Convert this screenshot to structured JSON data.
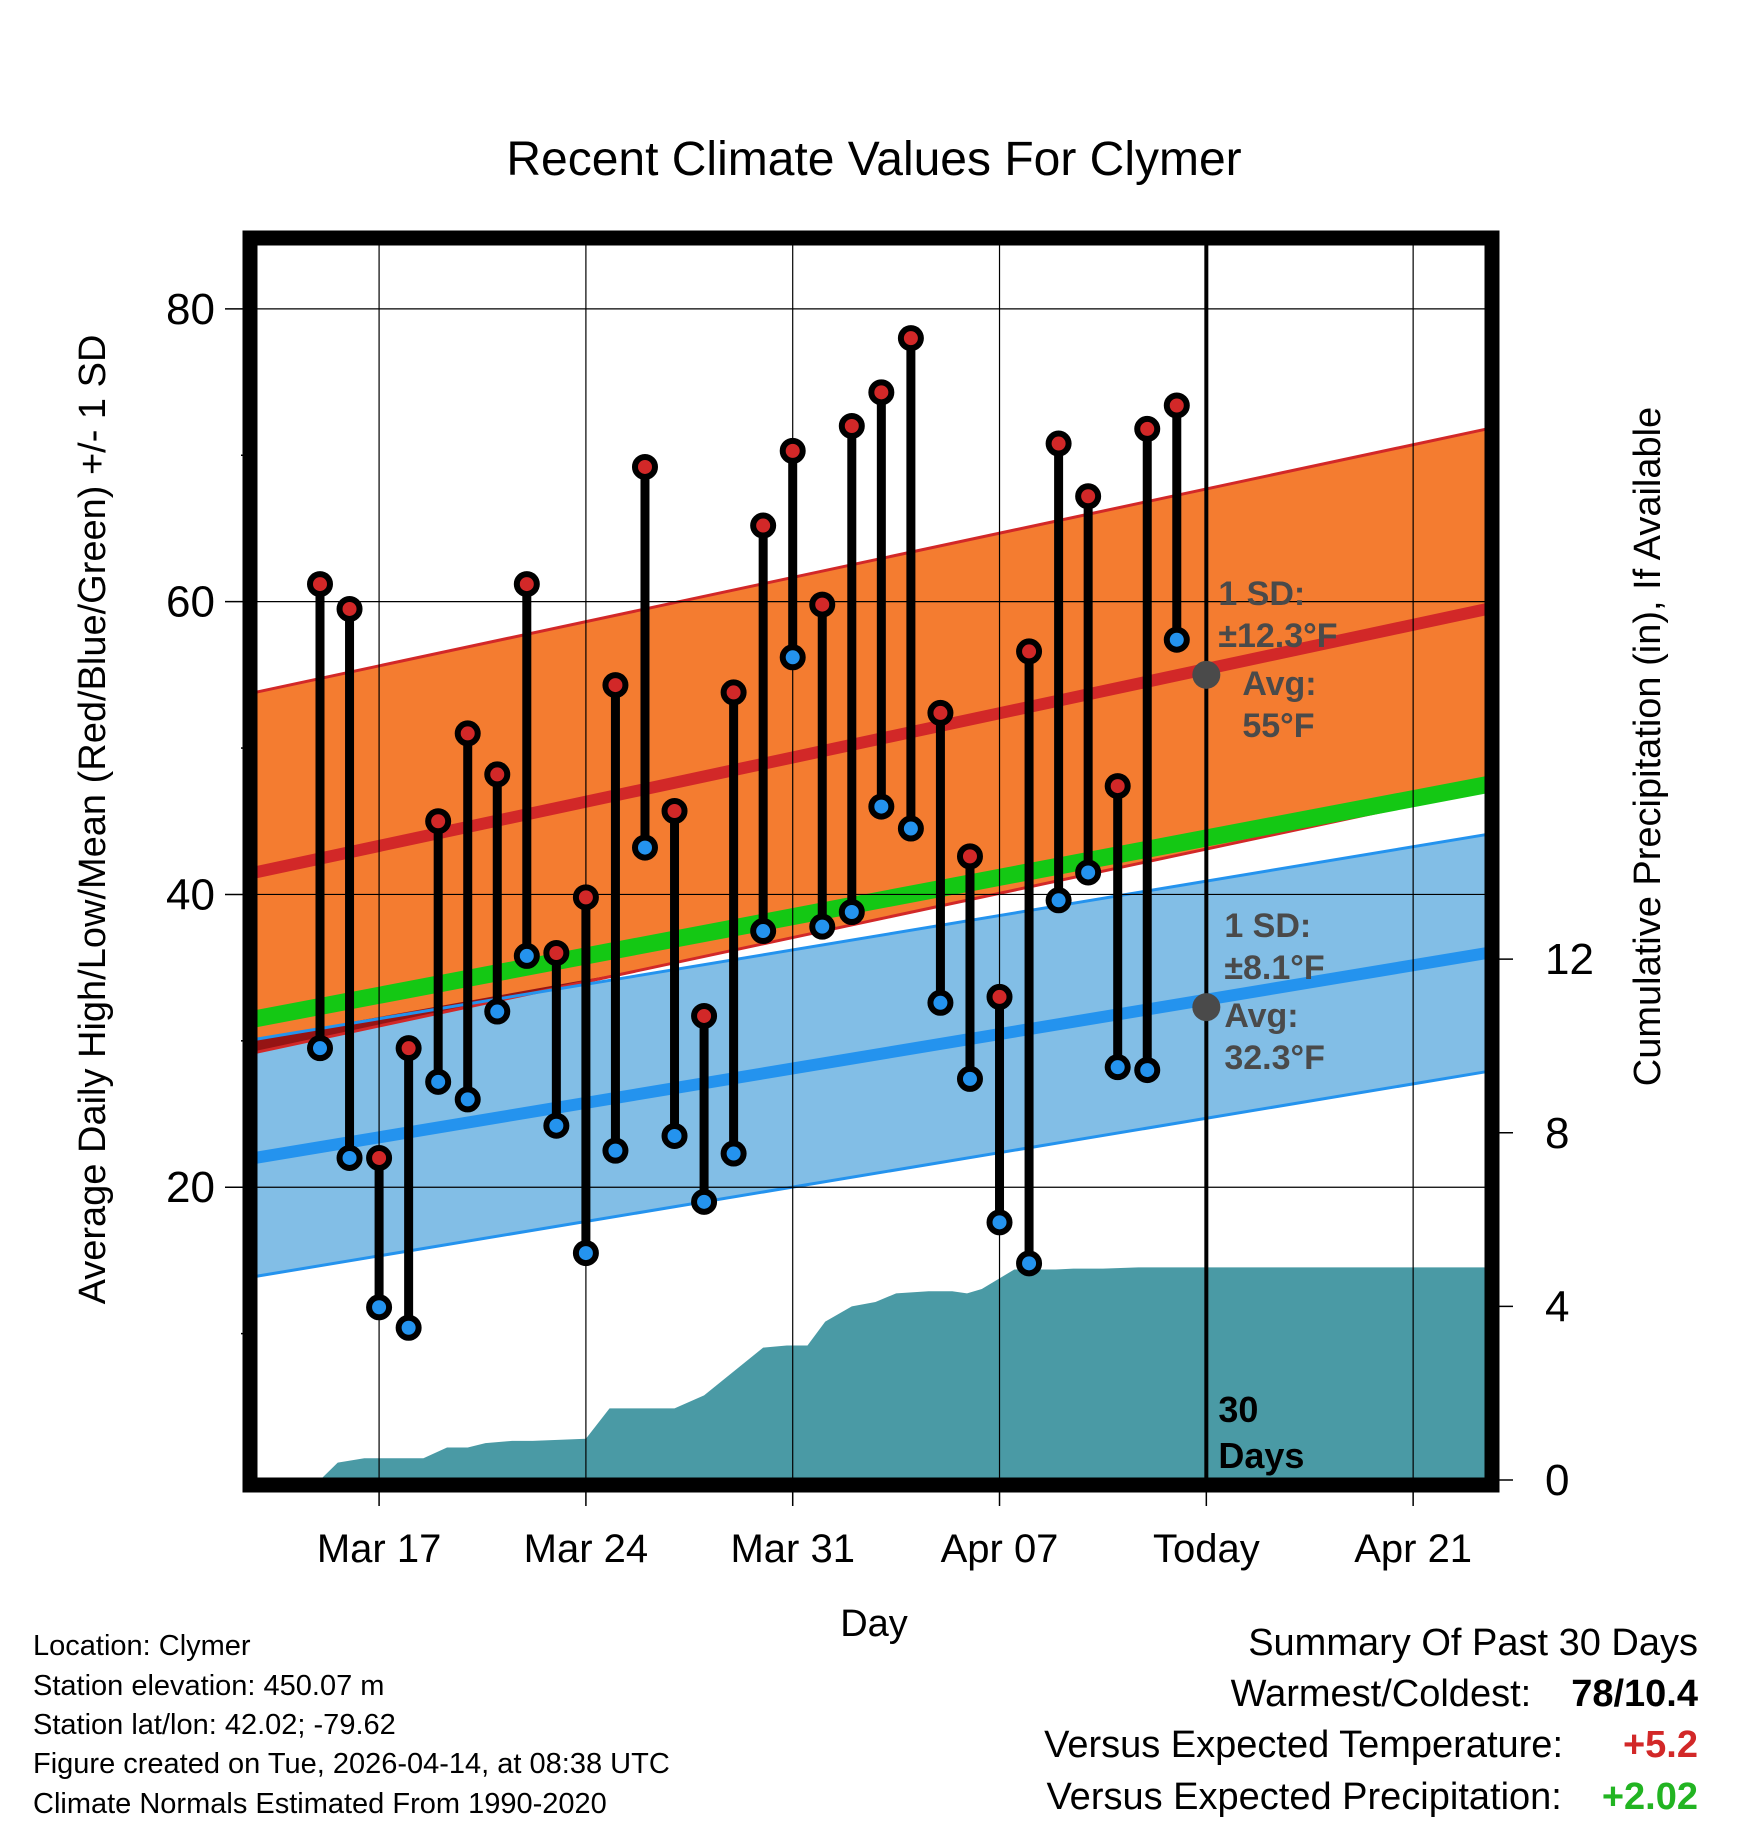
{
  "chart_data": {
    "type": "line",
    "title": "Recent Climate Values For Clymer",
    "xlabel": "Day",
    "ylabel": "Average Daily High/Low/Mean (Red/Blue/Green) +/- 1 SD",
    "y2label": "Cumulative Precipitation (in), If Available",
    "x_range_days": [
      -32.2,
      9.5
    ],
    "ylim": [
      0,
      84.5
    ],
    "y2lim": [
      0,
      28.5
    ],
    "x_ticks": [
      {
        "day": -28,
        "label": "Mar 17"
      },
      {
        "day": -21,
        "label": "Mar 24"
      },
      {
        "day": -14,
        "label": "Mar 31"
      },
      {
        "day": -7,
        "label": "Apr 07"
      },
      {
        "day": 0,
        "label": "Today"
      },
      {
        "day": 7,
        "label": "Apr 21"
      }
    ],
    "y_ticks": [
      20,
      40,
      60,
      80
    ],
    "y2_ticks": [
      0,
      4,
      8,
      12
    ],
    "today_marker_label": "30 Days",
    "days": [
      -30,
      -29,
      -28,
      -27,
      -26,
      -25,
      -24,
      -23,
      -22,
      -21,
      -20,
      -19,
      -18,
      -17,
      -16,
      -15,
      -14,
      -13,
      -12,
      -11,
      -10,
      -9,
      -8,
      -7,
      -6,
      -5,
      -4,
      -3,
      -2,
      -1
    ],
    "series": [
      {
        "name": "Daily High",
        "color": "#d22828",
        "values": [
          61.2,
          59.5,
          22,
          29.5,
          45,
          51,
          48.2,
          61.2,
          36,
          39.8,
          54.3,
          69.2,
          45.7,
          31.7,
          53.8,
          65.2,
          70.3,
          59.8,
          72,
          74.3,
          78,
          52.4,
          42.6,
          33,
          56.6,
          70.8,
          67.2,
          47.4,
          71.8,
          73.4
        ]
      },
      {
        "name": "Daily Low",
        "color": "#2493ee",
        "values": [
          29.5,
          22,
          11.8,
          10.4,
          27.2,
          26,
          32,
          35.8,
          24.2,
          15.5,
          22.5,
          43.2,
          23.5,
          19,
          22.3,
          37.5,
          56.2,
          37.8,
          38.8,
          46,
          44.5,
          32.6,
          27.4,
          17.6,
          14.8,
          39.6,
          41.5,
          28.2,
          28,
          57.4
        ]
      },
      {
        "name": "Cumulative Precipitation (in)",
        "color": "#4a9aa5",
        "x": [
          -30,
          -29.4,
          -28.5,
          -27.5,
          -26.5,
          -25.7,
          -25,
          -24.4,
          -23.5,
          -22.8,
          -21,
          -20.2,
          -19.2,
          -18,
          -17,
          -16,
          -15,
          -14.2,
          -13.5,
          -12.9,
          -12,
          -11.2,
          -10.5,
          -9.4,
          -8.6,
          -8.1,
          -7.6,
          -6.5,
          -5.8,
          -5.1,
          -4.5,
          -3.5,
          -2.3,
          -1,
          1,
          3,
          5,
          9.5
        ],
        "values": [
          0,
          0.4,
          0.5,
          0.5,
          0.5,
          0.75,
          0.75,
          0.85,
          0.9,
          0.9,
          0.95,
          1.65,
          1.65,
          1.65,
          1.95,
          2.5,
          3.05,
          3.1,
          3.1,
          3.65,
          4,
          4.1,
          4.3,
          4.35,
          4.35,
          4.3,
          4.4,
          4.85,
          4.85,
          4.85,
          4.87,
          4.87,
          4.9,
          4.9,
          4.9,
          4.9,
          4.9,
          4.9
        ]
      }
    ],
    "normals": {
      "high": {
        "start": 41.5,
        "end": 59.5,
        "sd": 12.3,
        "today_avg": 55,
        "annotation": [
          "1 SD:",
          "±12.3°F",
          "Avg:",
          "55°F"
        ]
      },
      "low": {
        "start": 22,
        "end": 36,
        "sd": 8.1,
        "today_avg": 32.3,
        "annotation": [
          "1 SD:",
          "±8.1°F",
          "Avg:",
          "32.3°F"
        ]
      },
      "mean": {
        "start": 31.5,
        "end": 47.5
      }
    }
  },
  "info": {
    "location": "Location: Clymer",
    "elevation": "Station elevation: 450.07 m",
    "latlon": "Station lat/lon: 42.02; -79.62",
    "created": "Figure created on Tue, 2026-04-14, at 08:38 UTC",
    "normals_period": "Climate Normals Estimated From 1990-2020"
  },
  "summary": {
    "title": "Summary Of Past 30 Days",
    "warmest_coldest_label": "Warmest/Coldest:",
    "warmest_coldest_value": "78/10.4",
    "temp_label": "Versus Expected Temperature:",
    "temp_value": "+5.2",
    "temp_color": "#d22828",
    "precip_label": "Versus Expected Precipitation:",
    "precip_value": "+2.02",
    "precip_color": "#22b422"
  }
}
